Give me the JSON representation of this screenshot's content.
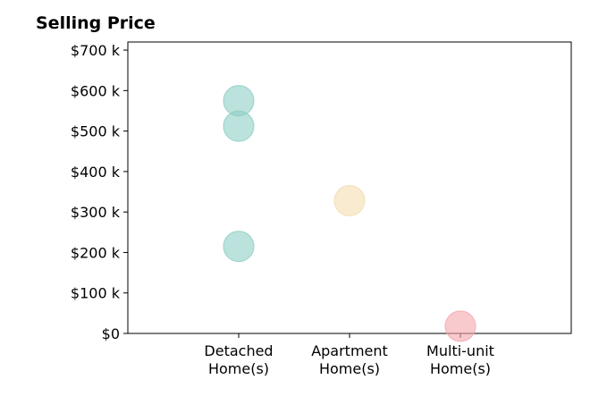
{
  "chart_data": {
    "type": "scatter",
    "title": "Selling Price",
    "xlabel": "",
    "ylabel": "",
    "categories": [
      "Detached Home(s)",
      "Apartment Home(s)",
      "Multi-unit Home(s)"
    ],
    "category_lines": [
      [
        "Detached",
        "Home(s)"
      ],
      [
        "Apartment",
        "Home(s)"
      ],
      [
        "Multi-unit",
        "Home(s)"
      ]
    ],
    "xlim": [
      -1,
      3
    ],
    "ylim": [
      0,
      720000
    ],
    "y_ticks": [
      0,
      100000,
      200000,
      300000,
      400000,
      500000,
      600000,
      700000
    ],
    "y_tick_labels": [
      "$0",
      "$100 k",
      "$200 k",
      "$300 k",
      "$400 k",
      "$500 k",
      "$600 k",
      "$700 k"
    ],
    "grid": false,
    "legend": "none",
    "series": [
      {
        "category": "Detached Home(s)",
        "color": "#8ecfc4",
        "values": [
          575000,
          512000,
          215000
        ]
      },
      {
        "category": "Apartment Home(s)",
        "color": "#f3deb0",
        "values": [
          328000
        ]
      },
      {
        "category": "Multi-unit Home(s)",
        "color": "#f4a6ad",
        "values": [
          18000
        ]
      }
    ]
  }
}
